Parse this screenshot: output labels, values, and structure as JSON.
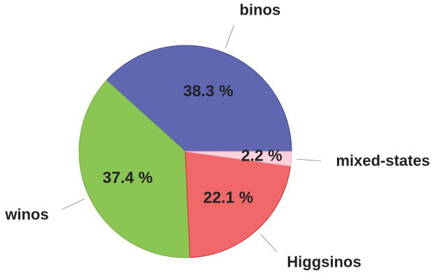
{
  "chart_data": {
    "type": "pie",
    "categories": [
      "binos",
      "winos",
      "Higgsinos",
      "mixed-states"
    ],
    "values": [
      38.3,
      37.4,
      22.1,
      2.2
    ],
    "value_labels": [
      "38.3 %",
      "37.4 %",
      "22.1 %",
      "2.2 %"
    ],
    "colors": [
      "#5f67b0",
      "#8bc553",
      "#f0686a",
      "#ffd1dc"
    ],
    "start_angle": 0,
    "counterclock": true
  }
}
